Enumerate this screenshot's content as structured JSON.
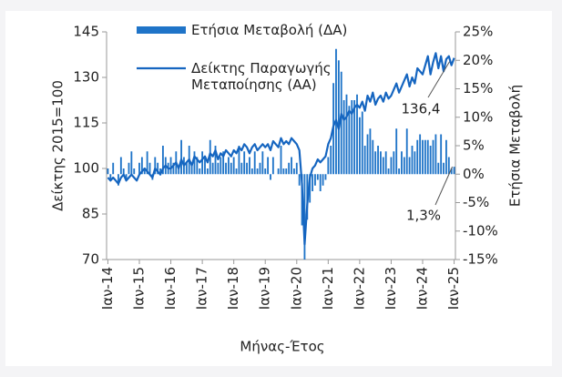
{
  "chart_data": {
    "type": "bar-line",
    "categories": [
      "Ιαν-14",
      null,
      null,
      null,
      null,
      null,
      null,
      null,
      null,
      null,
      null,
      null,
      "Ιαν-15",
      null,
      null,
      null,
      null,
      null,
      null,
      null,
      null,
      null,
      null,
      null,
      "Ιαν-16",
      null,
      null,
      null,
      null,
      null,
      null,
      null,
      null,
      null,
      null,
      null,
      "Ιαν-17",
      null,
      null,
      null,
      null,
      null,
      null,
      null,
      null,
      null,
      null,
      null,
      "Ιαν-18",
      null,
      null,
      null,
      null,
      null,
      null,
      null,
      null,
      null,
      null,
      null,
      "Ιαν-19",
      null,
      null,
      null,
      null,
      null,
      null,
      null,
      null,
      null,
      null,
      null,
      "Ιαν-20",
      null,
      null,
      null,
      null,
      null,
      null,
      null,
      null,
      null,
      null,
      null,
      "Ιαν-21",
      null,
      null,
      null,
      null,
      null,
      null,
      null,
      null,
      null,
      null,
      null,
      "Ιαν-22",
      null,
      null,
      null,
      null,
      null,
      null,
      null,
      null,
      null,
      null,
      null,
      "Ιαν-23",
      null,
      null,
      null,
      null,
      null,
      null,
      null,
      null,
      null,
      null,
      null,
      "Ιαν-24",
      null,
      null,
      null,
      null,
      null,
      null,
      null,
      null,
      null,
      null,
      null,
      "Ιαν-25"
    ],
    "series": [
      {
        "name": "Ετήσια Μεταβολή (ΔΑ)",
        "type": "bar",
        "axis": "y2",
        "color": "#1f74c8",
        "values": [
          1,
          -1,
          2,
          0,
          -2,
          3,
          1,
          -1,
          2,
          4,
          1,
          0,
          2,
          3,
          1,
          4,
          2,
          -1,
          3,
          2,
          1,
          5,
          3,
          2,
          3,
          2,
          4,
          1,
          6,
          3,
          2,
          5,
          2,
          4,
          3,
          1,
          4,
          3,
          1,
          6,
          2,
          5,
          2,
          3,
          4,
          2,
          3,
          2,
          3,
          1,
          5,
          2,
          4,
          2,
          3,
          1,
          4,
          1,
          2,
          4,
          1,
          3,
          -1,
          3,
          0,
          1,
          5,
          1,
          1,
          2,
          3,
          1,
          2,
          -2,
          -9,
          -15,
          -8,
          -5,
          -3,
          -2,
          -1,
          -3,
          -2,
          -1,
          3,
          5,
          16,
          22,
          20,
          18,
          13,
          14,
          12,
          13,
          13,
          14,
          10,
          11,
          5,
          7,
          8,
          6,
          4,
          5,
          4,
          3,
          4,
          1,
          3,
          4,
          8,
          1,
          4,
          3,
          8,
          3,
          5,
          4,
          6,
          7,
          6,
          6,
          6,
          5,
          6,
          7,
          2,
          7,
          2,
          6,
          3,
          1,
          1.3
        ]
      },
      {
        "name": "Δείκτης Παραγωγής Μεταποίησης (ΑΑ)",
        "type": "line",
        "axis": "y",
        "color": "#1565c0",
        "values": [
          97,
          96,
          97,
          96,
          95,
          97,
          98,
          96,
          97,
          98,
          97,
          96,
          98,
          99,
          100,
          99,
          98,
          97,
          100,
          99,
          98,
          100,
          101,
          100,
          100,
          101,
          102,
          100,
          103,
          101,
          102,
          103,
          101,
          104,
          103,
          102,
          103,
          104,
          102,
          105,
          104,
          106,
          103,
          105,
          104,
          106,
          105,
          104,
          106,
          105,
          107,
          106,
          108,
          107,
          105,
          107,
          108,
          106,
          107,
          108,
          107,
          108,
          106,
          109,
          108,
          107,
          110,
          108,
          109,
          108,
          110,
          109,
          108,
          106,
          95,
          75,
          88,
          97,
          100,
          101,
          103,
          102,
          103,
          104,
          108,
          110,
          114,
          116,
          113,
          118,
          116,
          117,
          119,
          118,
          120,
          121,
          120,
          122,
          119,
          124,
          122,
          125,
          121,
          123,
          124,
          122,
          125,
          123,
          124,
          126,
          128,
          125,
          127,
          129,
          131,
          127,
          130,
          128,
          133,
          132,
          131,
          134,
          137,
          131,
          135,
          138,
          133,
          137,
          132,
          136,
          137,
          134,
          136.4
        ]
      }
    ],
    "ylabel": "Δείκτης 2015=100",
    "y2label": "Ετήσια Μεταβολή",
    "xlabel": "Μήνας-Έτος",
    "ylim": [
      70,
      145
    ],
    "yticks": [
      70,
      85,
      100,
      115,
      130,
      145
    ],
    "y2lim": [
      -15,
      25
    ],
    "y2ticks": [
      {
        "value": -15,
        "label": "-15%"
      },
      {
        "value": -10,
        "label": "-10%"
      },
      {
        "value": -5,
        "label": "-5%"
      },
      {
        "value": 0,
        "label": "0%"
      },
      {
        "value": 5,
        "label": "5%"
      },
      {
        "value": 10,
        "label": "10%"
      },
      {
        "value": 15,
        "label": "15%"
      },
      {
        "value": 20,
        "label": "20%"
      },
      {
        "value": 25,
        "label": "25%"
      }
    ],
    "annotations": [
      {
        "text": "136,4"
      },
      {
        "text": "1,3%"
      }
    ]
  }
}
